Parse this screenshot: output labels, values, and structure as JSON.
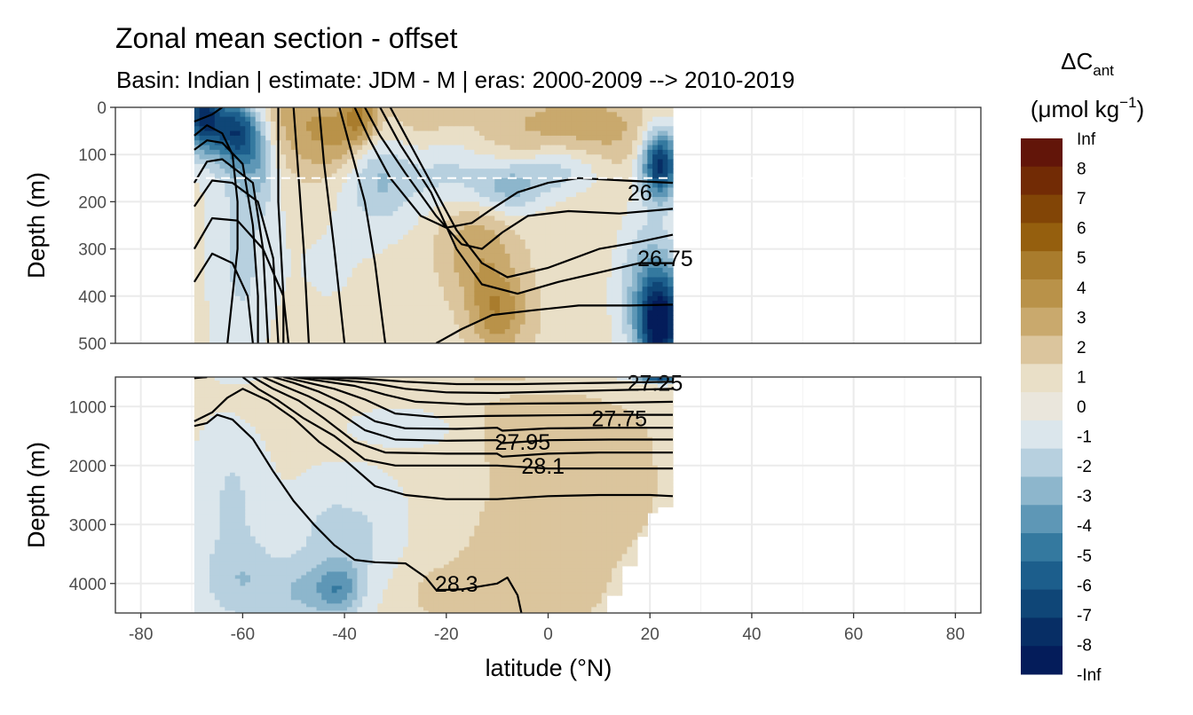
{
  "chart_data": {
    "type": "heatmap",
    "title": "Zonal mean section - offset",
    "subtitle": "Basin: Indian | estimate: JDM - M | eras: 2000-2009 --> 2010-2019",
    "xlabel": "latitude (°N)",
    "ylabel_top": "Depth (m)",
    "ylabel_bottom": "Depth (m)",
    "x_ticks": [
      "-80",
      "-60",
      "-40",
      "-20",
      "0",
      "20",
      "40",
      "60",
      "80"
    ],
    "x_tick_values": [
      -80,
      -60,
      -40,
      -20,
      0,
      20,
      40,
      60,
      80
    ],
    "xlim": [
      -85,
      85
    ],
    "top_panel": {
      "ylim": [
        0,
        500
      ],
      "y_ticks": [
        "0",
        "100",
        "200",
        "300",
        "400",
        "500"
      ],
      "y_tick_values": [
        0,
        100,
        200,
        300,
        400,
        500
      ],
      "reference_depth": 150
    },
    "bottom_panel": {
      "ylim": [
        500,
        4500
      ],
      "y_ticks": [
        "1000",
        "2000",
        "3000",
        "4000"
      ],
      "y_tick_values": [
        1000,
        2000,
        3000,
        4000
      ]
    },
    "data_lat_range": [
      -69.5,
      24.5
    ],
    "legend": {
      "title_main": "ΔC",
      "title_sub": "ant",
      "unit_text": "(μmol kg",
      "unit_sup": "−1",
      "unit_close": ")",
      "labels": [
        "Inf",
        "8",
        "7",
        "6",
        "5",
        "4",
        "3",
        "2",
        "1",
        "0",
        "-1",
        "-2",
        "-3",
        "-4",
        "-5",
        "-6",
        "-7",
        "-8",
        "-Inf"
      ],
      "colors": [
        "#621509",
        "#722b05",
        "#824506",
        "#955f0e",
        "#a97c2d",
        "#b99249",
        "#c9a96d",
        "#dbc59d",
        "#e9dfc7",
        "#eae6dc",
        "#dbe6ec",
        "#b7d0df",
        "#8db6cc",
        "#5e97b6",
        "#34799f",
        "#1c5e8c",
        "#0f4677",
        "#072e65",
        "#041c5a"
      ]
    },
    "isopycnal_labels": [
      {
        "label": "26",
        "lat": 18,
        "depth": 180
      },
      {
        "label": "26.75",
        "lat": 23,
        "depth": 320
      },
      {
        "label": "27.25",
        "lat": 21,
        "depth": 600
      },
      {
        "label": "27.75",
        "lat": 14,
        "depth": 1200
      },
      {
        "label": "27.95",
        "lat": -5,
        "depth": 1600
      },
      {
        "label": "28.1",
        "lat": -1,
        "depth": 2000
      },
      {
        "label": "28.3",
        "lat": -18,
        "depth": 4000
      }
    ]
  }
}
